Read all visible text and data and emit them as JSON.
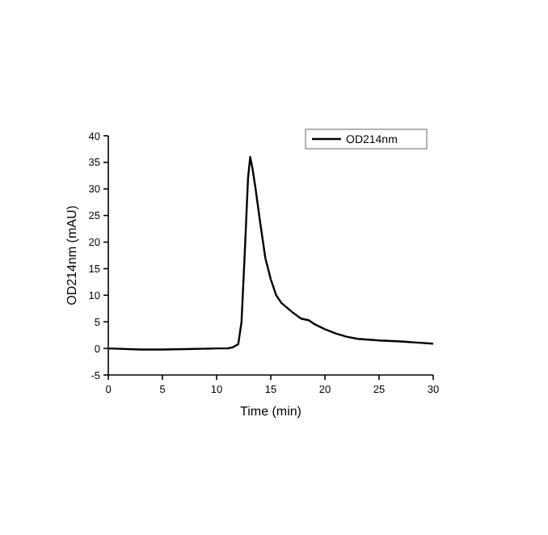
{
  "chart_data": {
    "type": "line",
    "xlabel": "Time (min)",
    "ylabel": "OD214nm (mAU)",
    "xlim": [
      0,
      30
    ],
    "ylim": [
      -5,
      40
    ],
    "xticks": [
      0,
      5,
      10,
      15,
      20,
      25,
      30
    ],
    "yticks": [
      -5,
      0,
      5,
      10,
      15,
      20,
      25,
      30,
      35,
      40
    ],
    "legend": "top right",
    "grid": false,
    "series": [
      {
        "name": "OD214nm",
        "color": "#000000",
        "x": [
          0,
          3,
          5,
          8,
          10,
          11,
          11.5,
          12,
          12.3,
          12.6,
          12.9,
          13.1,
          13.3,
          13.6,
          14,
          14.5,
          15,
          15.5,
          16,
          17,
          17.8,
          18.5,
          19,
          20,
          21,
          22,
          23,
          25,
          27,
          30
        ],
        "values": [
          0,
          -0.2,
          -0.2,
          -0.1,
          0,
          0,
          0.2,
          0.8,
          5,
          18,
          32,
          36,
          34,
          30,
          24,
          17,
          13,
          10,
          8.5,
          6.8,
          5.6,
          5.3,
          4.6,
          3.6,
          2.8,
          2.2,
          1.8,
          1.5,
          1.3,
          0.9
        ]
      }
    ]
  }
}
